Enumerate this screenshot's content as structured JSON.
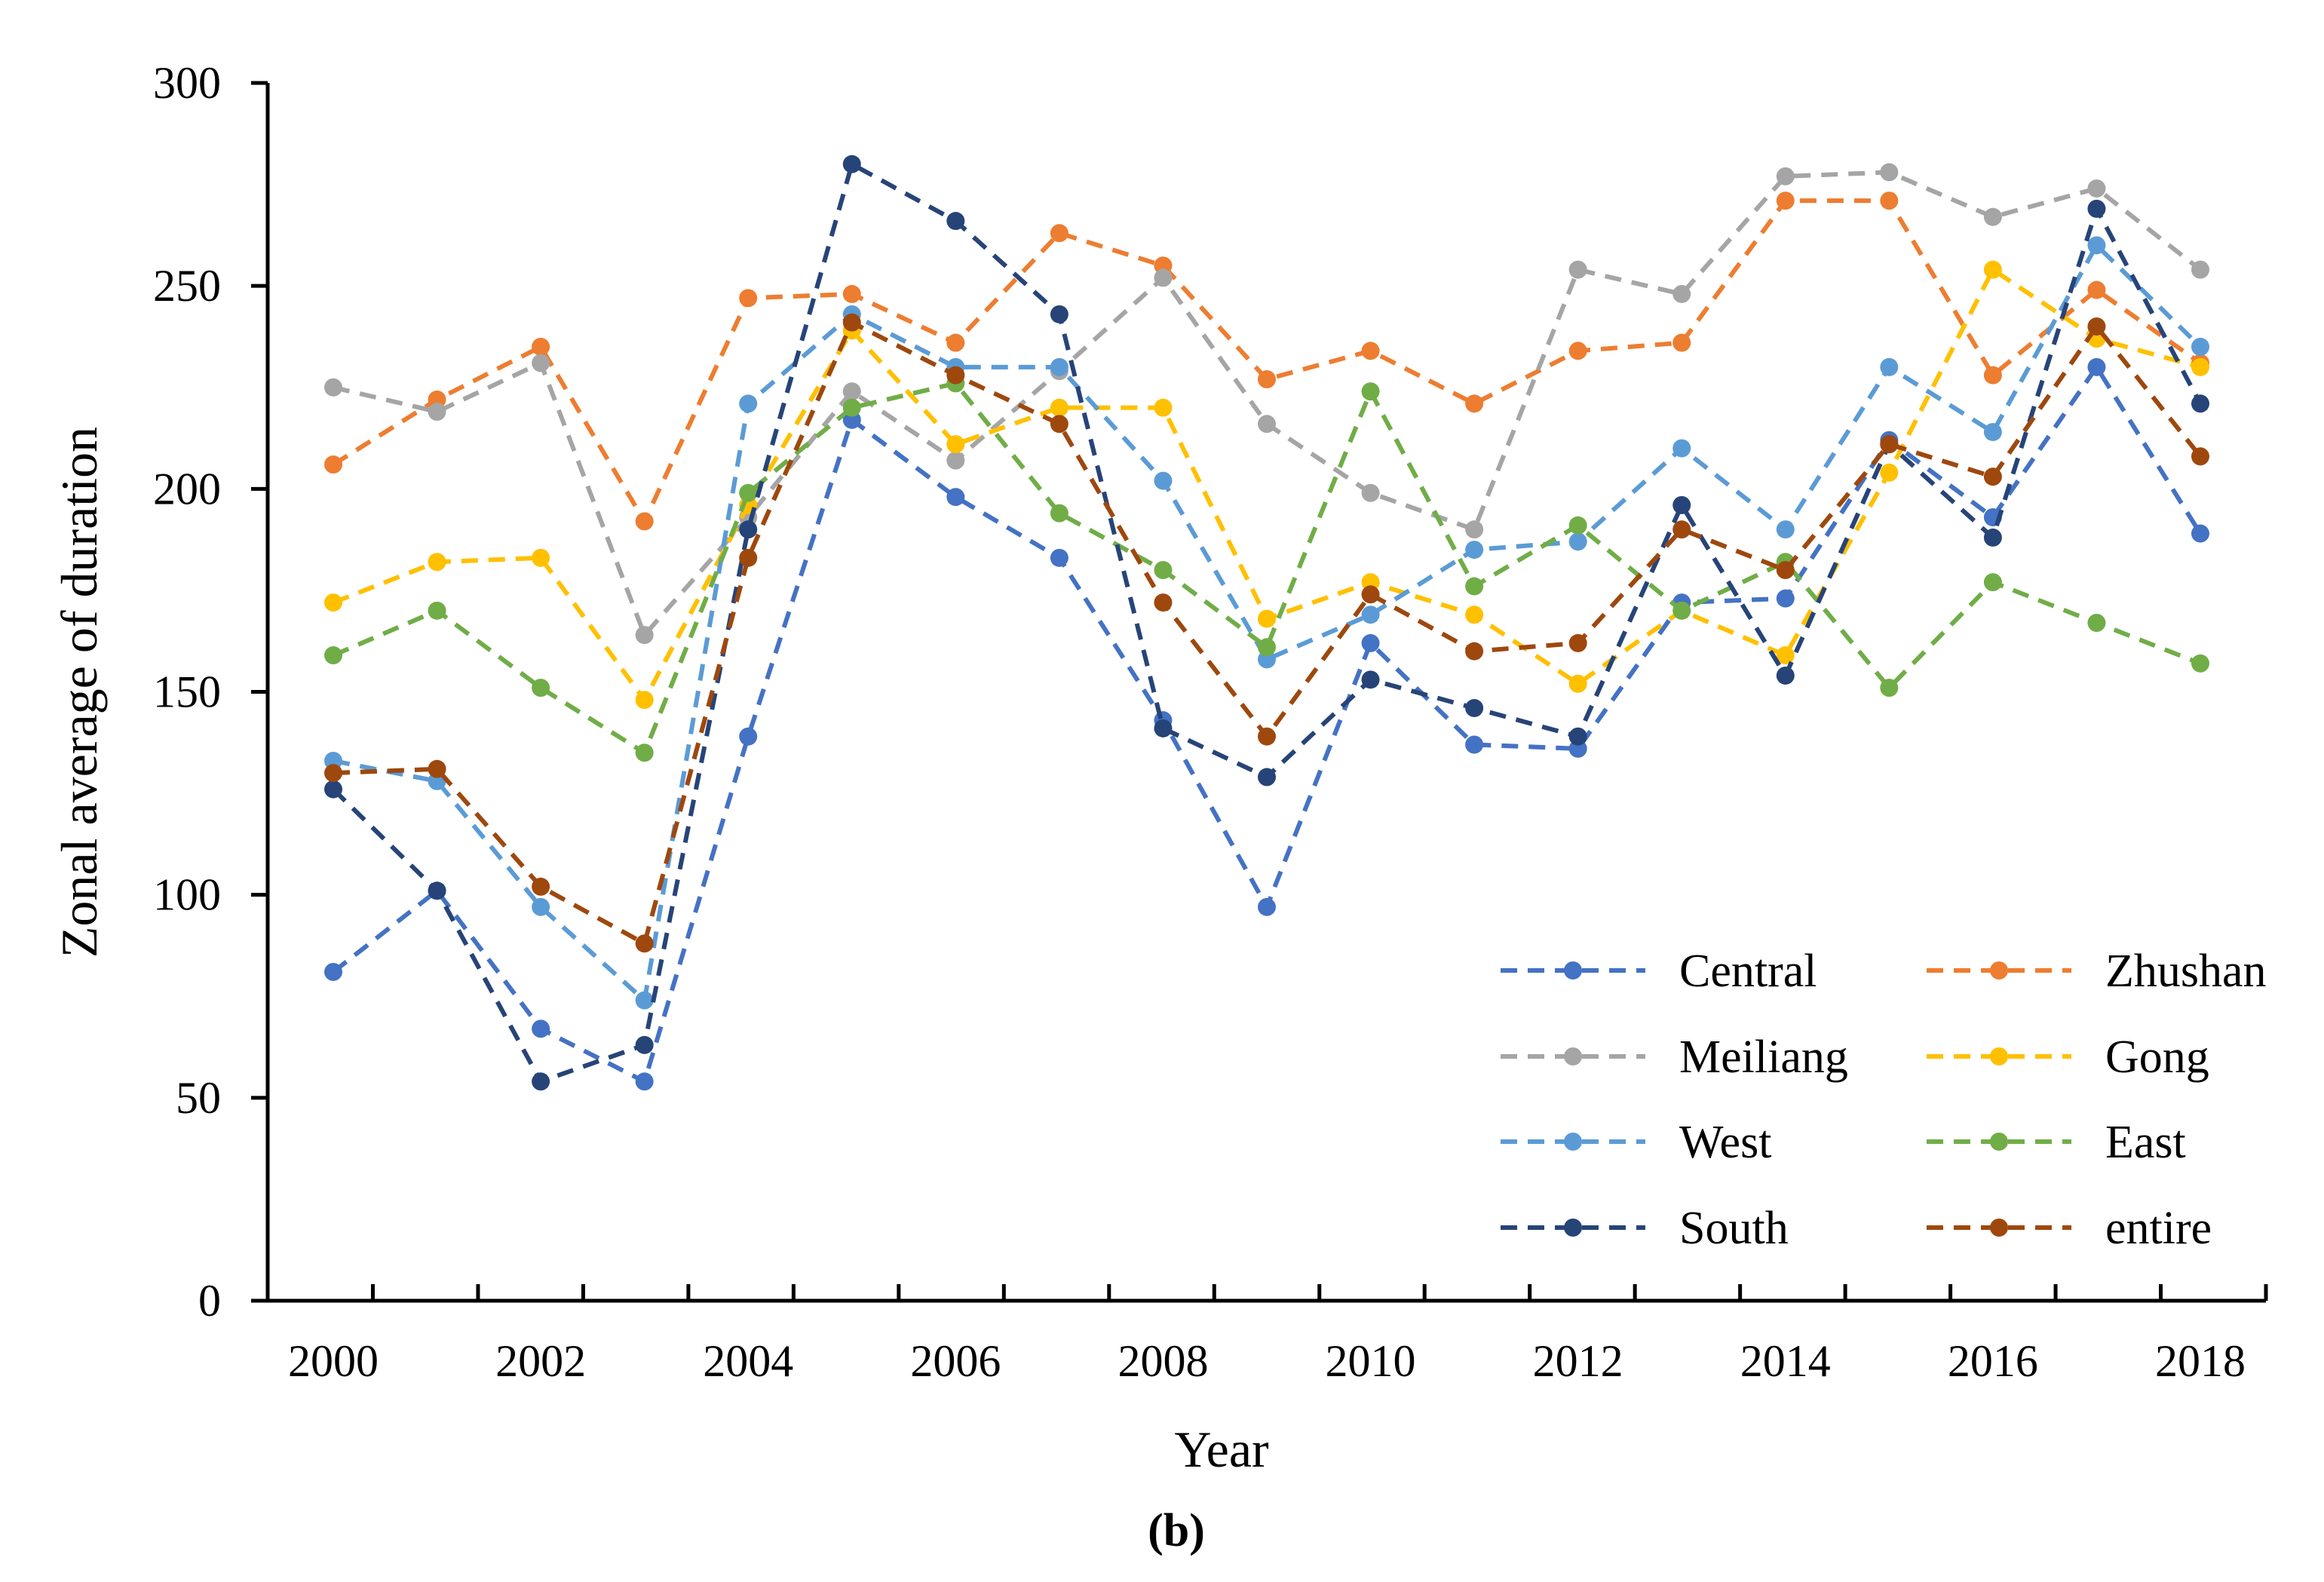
{
  "chart_data": {
    "type": "line",
    "title": "",
    "xlabel": "Year",
    "ylabel": "Zonal average of duration",
    "panel_label": "(b)",
    "xlim": [
      2000,
      2018
    ],
    "ylim": [
      0,
      300
    ],
    "y_ticks": [
      0,
      50,
      100,
      150,
      200,
      250,
      300
    ],
    "x_tick_labels": [
      "2000",
      "2002",
      "2004",
      "2006",
      "2008",
      "2010",
      "2012",
      "2014",
      "2016",
      "2018"
    ],
    "x_tick_values": [
      2000,
      2002,
      2004,
      2006,
      2008,
      2010,
      2012,
      2014,
      2016,
      2018
    ],
    "grid": false,
    "legend_position": "bottom-right",
    "line_style": "dashed with circle markers",
    "x": [
      2000,
      2001,
      2002,
      2003,
      2004,
      2005,
      2006,
      2007,
      2008,
      2009,
      2010,
      2011,
      2012,
      2013,
      2014,
      2015,
      2016,
      2017,
      2018
    ],
    "series": [
      {
        "name": "Central",
        "color": "#4472C4",
        "values": [
          81,
          101,
          67,
          54,
          139,
          217,
          198,
          183,
          143,
          97,
          162,
          137,
          136,
          172,
          173,
          212,
          193,
          230,
          189
        ]
      },
      {
        "name": "Zhushan",
        "color": "#ED7D31",
        "values": [
          206,
          222,
          235,
          192,
          247,
          248,
          236,
          263,
          255,
          227,
          234,
          221,
          234,
          236,
          271,
          271,
          228,
          249,
          231
        ]
      },
      {
        "name": "Meiliang",
        "color": "#A5A5A5",
        "values": [
          225,
          219,
          231,
          164,
          193,
          224,
          207,
          229,
          252,
          216,
          199,
          190,
          254,
          248,
          277,
          278,
          267,
          274,
          254
        ]
      },
      {
        "name": "Gong",
        "color": "#FFC000",
        "values": [
          172,
          182,
          183,
          148,
          196,
          239,
          211,
          220,
          220,
          168,
          177,
          169,
          152,
          170,
          159,
          204,
          254,
          237,
          230
        ]
      },
      {
        "name": "West",
        "color": "#5B9BD5",
        "values": [
          133,
          128,
          97,
          74,
          221,
          243,
          230,
          230,
          202,
          158,
          169,
          185,
          187,
          210,
          190,
          230,
          214,
          260,
          235
        ]
      },
      {
        "name": "East",
        "color": "#70AD47",
        "values": [
          159,
          170,
          151,
          135,
          199,
          220,
          226,
          194,
          180,
          161,
          224,
          176,
          191,
          170,
          182,
          151,
          177,
          167,
          157
        ]
      },
      {
        "name": "South",
        "color": "#264478",
        "values": [
          126,
          101,
          54,
          63,
          190,
          280,
          266,
          243,
          141,
          129,
          153,
          146,
          139,
          196,
          154,
          211,
          188,
          269,
          221
        ]
      },
      {
        "name": "entire",
        "color": "#9E480E",
        "values": [
          130,
          131,
          102,
          88,
          183,
          241,
          228,
          216,
          172,
          139,
          174,
          160,
          162,
          190,
          180,
          211,
          203,
          240,
          208
        ]
      }
    ]
  }
}
